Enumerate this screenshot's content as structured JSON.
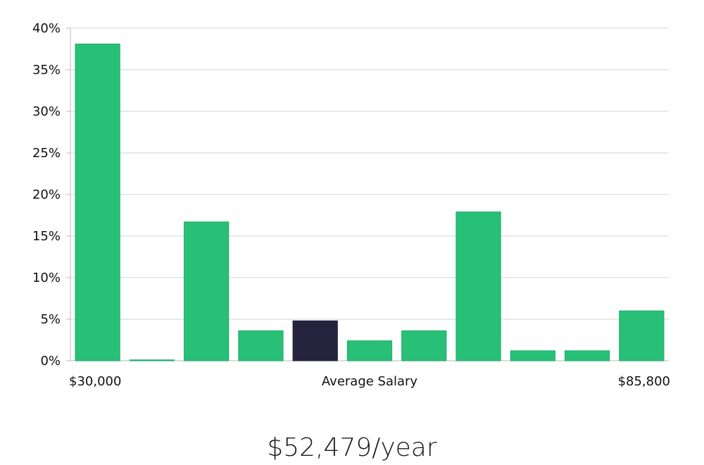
{
  "chart_data": {
    "type": "bar",
    "values": [
      38.1,
      0.1,
      16.7,
      3.6,
      4.8,
      2.4,
      3.6,
      17.9,
      1.2,
      1.2,
      6.0
    ],
    "highlight_index": 4,
    "ylim": [
      0,
      40
    ],
    "y_ticks": [
      "0%",
      "5%",
      "10%",
      "15%",
      "20%",
      "25%",
      "30%",
      "35%",
      "40%"
    ],
    "y_tick_values": [
      0,
      5,
      10,
      15,
      20,
      25,
      30,
      35,
      40
    ],
    "grid": true,
    "x_min_label": "$30,000",
    "xlabel": "Average Salary",
    "x_max_label": "$85,800",
    "summary": "$52,479/year",
    "colors": {
      "bar": "#28bf76",
      "bar_stroke": "#1fae68",
      "highlight": "#26233f",
      "grid": "#e2e2e2",
      "axis": "#d0d0d0"
    }
  }
}
